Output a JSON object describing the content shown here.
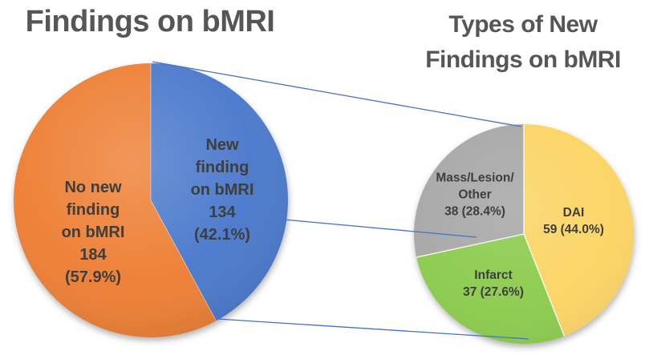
{
  "background_color": "#FFFFFF",
  "title_color": "#565656",
  "label_color": "#3E3E3E",
  "connector_line_color": "#4472C4",
  "chart_data": [
    {
      "type": "pie",
      "title": "Findings on bMRI",
      "legend": "none",
      "labels_position": "inside",
      "start_angle_deg": 0,
      "direction": "clockwise",
      "total": 318,
      "slices": [
        {
          "label": "New finding on bMRI",
          "value": 134,
          "pct": 42.1,
          "color": "#4877CB",
          "label_lines": [
            "New",
            "finding",
            "on bMRI",
            "134",
            "(42.1%)"
          ]
        },
        {
          "label": "No new finding on bMRI",
          "value": 184,
          "pct": 57.9,
          "color": "#ED7D31",
          "label_lines": [
            "No new",
            "finding",
            "on bMRI",
            "184",
            "(57.9%)"
          ]
        }
      ]
    },
    {
      "type": "pie",
      "title": "Types of New Findings on bMRI",
      "title_lines": [
        "Types of New",
        "Findings on bMRI"
      ],
      "legend": "none",
      "labels_position": "inside",
      "start_angle_deg": 0,
      "direction": "clockwise",
      "total": 134,
      "slices": [
        {
          "label": "DAI",
          "value": 59,
          "pct": 44.0,
          "color": "#FBD463",
          "label_lines": [
            "DAI",
            "59 (44.0%)"
          ]
        },
        {
          "label": "Infarct",
          "value": 37,
          "pct": 27.6,
          "color": "#8BCB4C",
          "label_lines": [
            "Infarct",
            "37 (27.6%)"
          ]
        },
        {
          "label": "Mass/Lesion/Other",
          "value": 38,
          "pct": 28.4,
          "color": "#A7A7A7",
          "label_lines": [
            "Mass/Lesion/",
            "Other",
            "38 (28.4%)"
          ]
        }
      ]
    }
  ]
}
